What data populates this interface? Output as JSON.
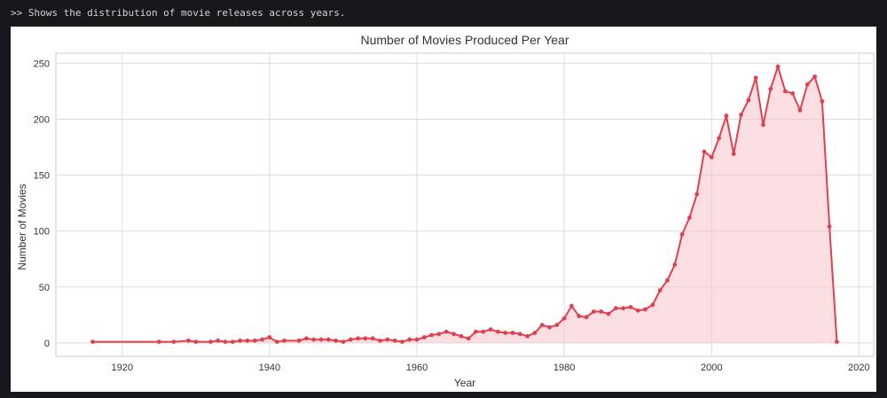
{
  "output": {
    "text": ">> Shows the distribution of movie releases across years."
  },
  "chart_data": {
    "type": "area",
    "title": "Number of Movies Produced Per Year",
    "xlabel": "Year",
    "ylabel": "Number of Movies",
    "xlim": [
      1911,
      2022
    ],
    "ylim": [
      -12,
      259
    ],
    "xticks": [
      1920,
      1940,
      1960,
      1980,
      2000,
      2020
    ],
    "yticks": [
      0,
      50,
      100,
      150,
      200,
      250
    ],
    "grid": true,
    "colors": {
      "line": "#e0404f",
      "fill": "#f6c5cb"
    },
    "x": [
      1916,
      1925,
      1927,
      1929,
      1930,
      1932,
      1933,
      1934,
      1935,
      1936,
      1937,
      1938,
      1939,
      1940,
      1941,
      1942,
      1944,
      1945,
      1946,
      1947,
      1948,
      1949,
      1950,
      1951,
      1952,
      1953,
      1954,
      1955,
      1956,
      1957,
      1958,
      1959,
      1960,
      1961,
      1962,
      1963,
      1964,
      1965,
      1966,
      1967,
      1968,
      1969,
      1970,
      1971,
      1972,
      1973,
      1974,
      1975,
      1976,
      1977,
      1978,
      1979,
      1980,
      1981,
      1982,
      1983,
      1984,
      1985,
      1986,
      1987,
      1988,
      1989,
      1990,
      1991,
      1992,
      1993,
      1994,
      1995,
      1996,
      1997,
      1998,
      1999,
      2000,
      2001,
      2002,
      2003,
      2004,
      2005,
      2006,
      2007,
      2008,
      2009,
      2010,
      2011,
      2012,
      2013,
      2014,
      2015,
      2016,
      2017
    ],
    "y": [
      1,
      1,
      1,
      2,
      1,
      1,
      2,
      1,
      1,
      2,
      2,
      2,
      3,
      5,
      1,
      2,
      2,
      4,
      3,
      3,
      3,
      2,
      1,
      3,
      4,
      4,
      4,
      2,
      3,
      2,
      1,
      3,
      3,
      5,
      7,
      8,
      10,
      8,
      6,
      4,
      10,
      10,
      12,
      10,
      9,
      9,
      8,
      6,
      9,
      16,
      14,
      16,
      22,
      33,
      24,
      23,
      28,
      28,
      26,
      31,
      31,
      32,
      29,
      30,
      34,
      47,
      56,
      70,
      97,
      112,
      133,
      171,
      166,
      183,
      203,
      169,
      204,
      217,
      237,
      195,
      227,
      247,
      225,
      223,
      208,
      231,
      238,
      216,
      104,
      1
    ]
  }
}
